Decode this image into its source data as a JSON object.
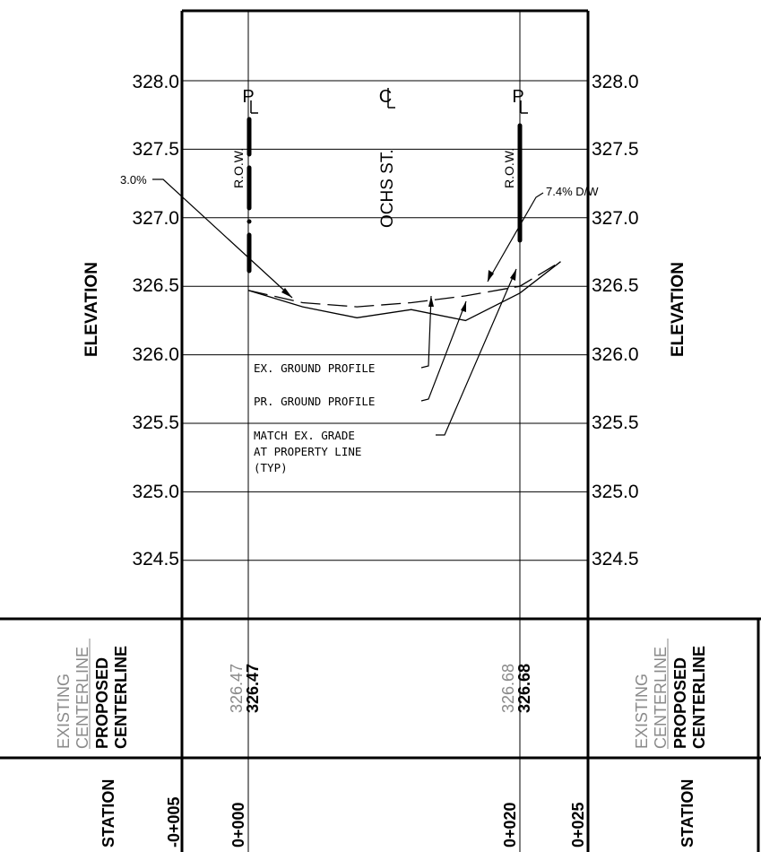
{
  "elevation_axis": {
    "label": "ELEVATION",
    "ticks": [
      "328.0",
      "327.5",
      "327.0",
      "326.5",
      "326.0",
      "325.5",
      "325.0",
      "324.5"
    ]
  },
  "markers": {
    "property_line_left": "P",
    "property_line_right": "P",
    "centerline": "C",
    "row_left": "R.O.W.",
    "row_right": "R.O.W.",
    "street": "OCHS ST."
  },
  "annotations": {
    "slope_left": "3.0%",
    "slope_right": "7.4% D/W",
    "ex_ground": "EX. GROUND PROFILE",
    "pr_ground": "PR. GROUND PROFILE",
    "match_1": "MATCH EX. GRADE",
    "match_2": "AT PROPERTY LINE",
    "match_3": "(TYP)"
  },
  "table": {
    "existing_label": "EXISTING",
    "centerline_label": "CENTERLINE",
    "proposed_label": "PROPOSED",
    "proposed_centerline_label": "CENTERLINE",
    "station_label": "STATION",
    "elev_left_existing": "326.47",
    "elev_left_proposed": "326.47",
    "elev_right_existing": "326.68",
    "elev_right_proposed": "326.68",
    "stations": [
      "-0+005",
      "0+000",
      "0+020",
      "0+025"
    ]
  },
  "chart_data": {
    "type": "line",
    "ylabel": "ELEVATION",
    "ylim": [
      324.5,
      328.0
    ],
    "xlim": [
      -5,
      25
    ],
    "series": [
      {
        "name": "EX. GROUND PROFILE",
        "style": "dashed",
        "x": [
          0,
          4,
          8,
          12,
          16,
          20,
          23
        ],
        "y": [
          326.47,
          326.38,
          326.35,
          326.38,
          326.43,
          326.5,
          326.68
        ]
      },
      {
        "name": "PR. GROUND PROFILE",
        "style": "solid",
        "x": [
          0,
          4,
          8,
          12,
          16,
          20,
          23
        ],
        "y": [
          326.47,
          326.35,
          326.27,
          326.33,
          326.25,
          326.45,
          326.68
        ]
      }
    ]
  }
}
